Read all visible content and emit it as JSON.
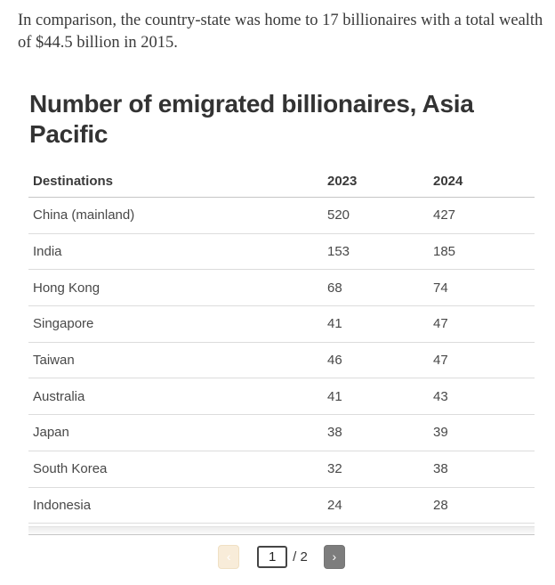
{
  "page": {
    "intro_text": "In comparison, the country-state was home to 17 billionaires with a total wealth of $44.5 billion in 2015."
  },
  "widget": {
    "title": "Number of emigrated billionaires, Asia Pacific",
    "table": {
      "columns": [
        "Destinations",
        "2023",
        "2024"
      ],
      "rows": [
        [
          "China (mainland)",
          "520",
          "427"
        ],
        [
          "India",
          "153",
          "185"
        ],
        [
          "Hong Kong",
          "68",
          "74"
        ],
        [
          "Singapore",
          "41",
          "47"
        ],
        [
          "Taiwan",
          "46",
          "47"
        ],
        [
          "Australia",
          "41",
          "43"
        ],
        [
          "Japan",
          "38",
          "39"
        ],
        [
          "South Korea",
          "32",
          "38"
        ],
        [
          "Indonesia",
          "24",
          "28"
        ]
      ]
    },
    "pagination": {
      "prev_icon": "‹",
      "next_icon": "›",
      "page_value": "1",
      "total_label": "/ 2"
    }
  },
  "colors": {
    "text": "#3a3a3a",
    "title": "#333333",
    "row_separator": "#dcdcdc",
    "header_separator": "#c6c6c6",
    "prev_button_bg": "#f8ecd9",
    "prev_button_border": "#f0e0c3",
    "next_button_bg": "#7d7d7d",
    "input_border": "#454545"
  }
}
